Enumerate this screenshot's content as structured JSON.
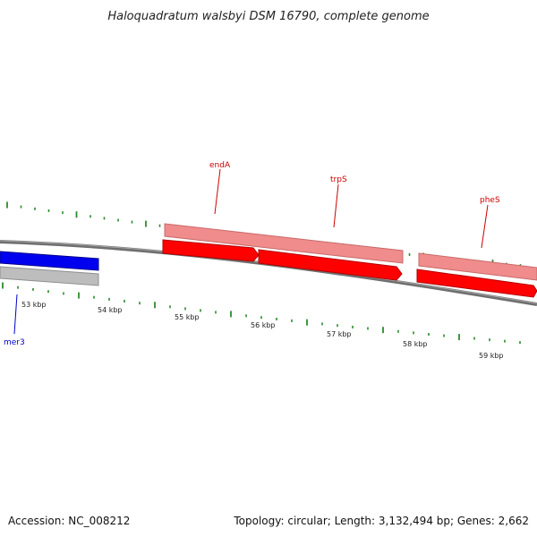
{
  "title": "Haloquadratum walsbyi DSM 16790, complete genome",
  "footer": {
    "accession": "Accession: NC_008212",
    "summary": "Topology: circular; Length: 3,132,494 bp; Genes: 2,662"
  },
  "colors": {
    "background": "#ffffff",
    "backbone": "#777777",
    "tick": "#2d8a2d",
    "forward_cds": "#ff0000",
    "forward_cds_light": "#f08c8c",
    "reverse_cds": "#0000ee",
    "reverse_cds_light": "#b8b8b8",
    "forward_label": "#cc0000",
    "reverse_label": "#0000cc"
  },
  "axis_labels": [
    "53 kbp",
    "54 kbp",
    "55 kbp",
    "56 kbp",
    "57 kbp",
    "58 kbp",
    "59 kbp"
  ],
  "genes": [
    {
      "name": "endA",
      "strand": "forward"
    },
    {
      "name": "trpS",
      "strand": "forward"
    },
    {
      "name": "pheS",
      "strand": "forward"
    },
    {
      "name": "mer3",
      "strand": "reverse"
    }
  ]
}
